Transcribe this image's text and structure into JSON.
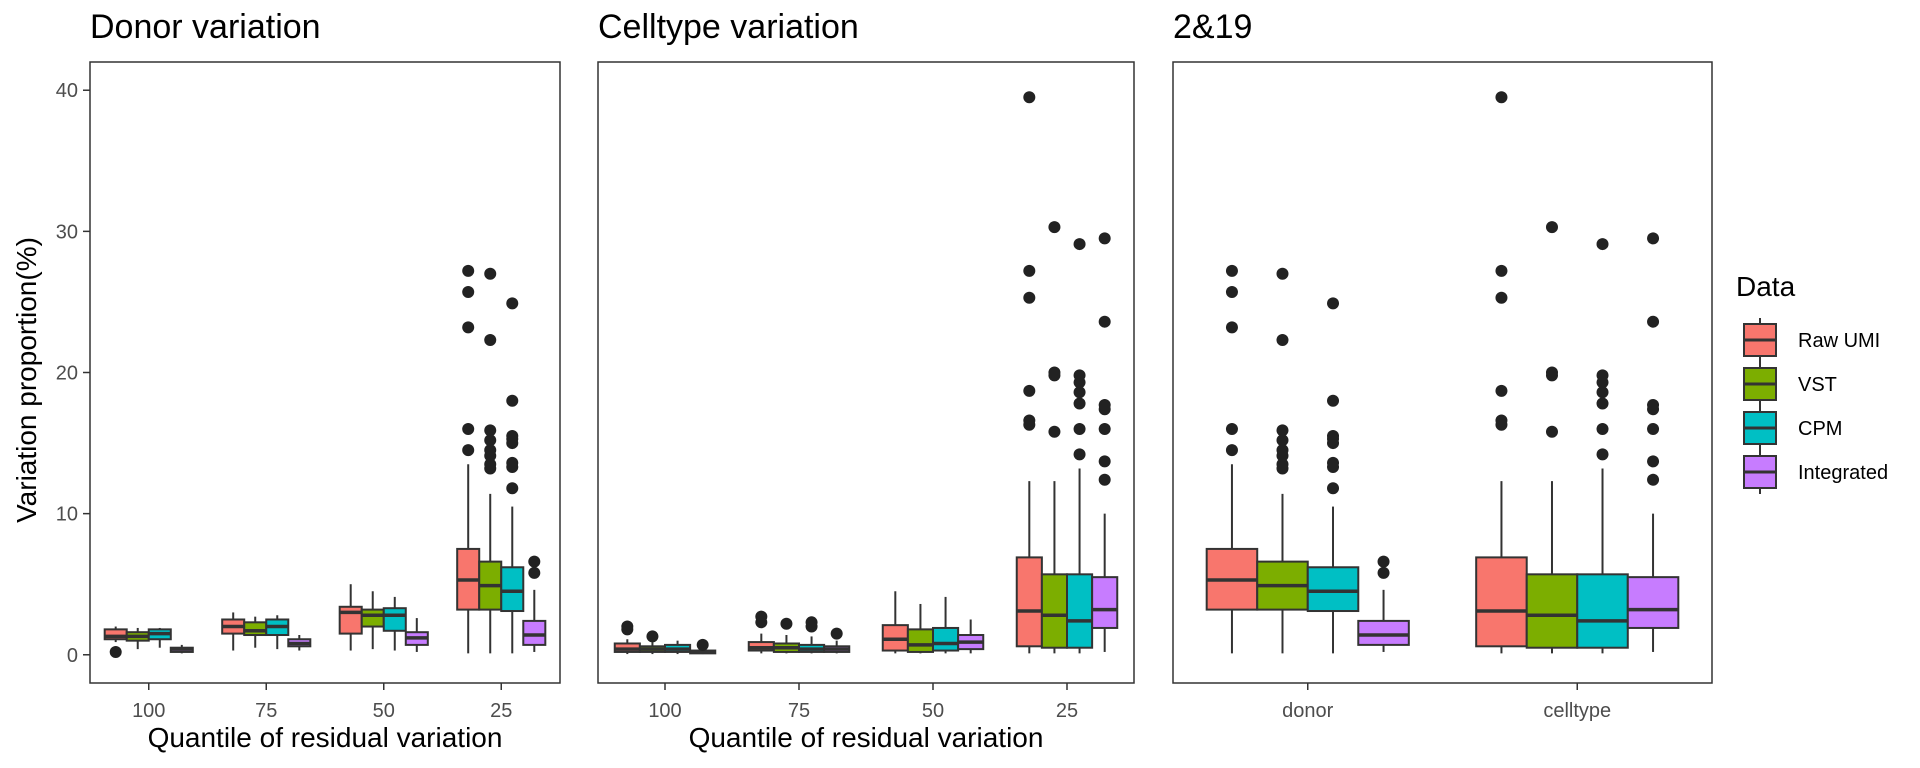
{
  "legend": {
    "title": "Data",
    "items": [
      {
        "label": "Raw UMI",
        "color": "#F8766D"
      },
      {
        "label": "VST",
        "color": "#7CAE00"
      },
      {
        "label": "CPM",
        "color": "#00BFC4"
      },
      {
        "label": "Integrated",
        "color": "#C77CFF"
      }
    ]
  },
  "y_axis_title": "Variation proportion(%)",
  "chart_data": [
    {
      "type": "box",
      "title": "Donor variation",
      "xlabel": "Quantile of residual variation",
      "ylabel": "Variation proportion(%)",
      "ylim": [
        -2,
        42
      ],
      "yticks": [
        0,
        10,
        20,
        30,
        40
      ],
      "categories": [
        "100",
        "75",
        "50",
        "25"
      ],
      "series": [
        {
          "name": "Raw UMI",
          "boxes": [
            {
              "min": 0.9,
              "q1": 1.1,
              "median": 1.3,
              "q3": 1.8,
              "max": 2.0,
              "outliers": [
                0.2
              ]
            },
            {
              "min": 0.3,
              "q1": 1.5,
              "median": 2.0,
              "q3": 2.5,
              "max": 3.0,
              "outliers": []
            },
            {
              "min": 0.3,
              "q1": 1.5,
              "median": 3.0,
              "q3": 3.4,
              "max": 5.0,
              "outliers": []
            },
            {
              "min": 0.1,
              "q1": 3.2,
              "median": 5.3,
              "q3": 7.5,
              "max": 13.5,
              "outliers": [
                14.5,
                16.0,
                23.2,
                25.7,
                27.2
              ]
            }
          ]
        },
        {
          "name": "VST",
          "boxes": [
            {
              "min": 0.4,
              "q1": 1.0,
              "median": 1.3,
              "q3": 1.6,
              "max": 1.9,
              "outliers": []
            },
            {
              "min": 0.5,
              "q1": 1.4,
              "median": 1.7,
              "q3": 2.3,
              "max": 2.7,
              "outliers": []
            },
            {
              "min": 0.4,
              "q1": 2.0,
              "median": 2.8,
              "q3": 3.2,
              "max": 4.5,
              "outliers": []
            },
            {
              "min": 0.1,
              "q1": 3.2,
              "median": 4.9,
              "q3": 6.6,
              "max": 11.4,
              "outliers": [
                13.2,
                13.5,
                14.1,
                14.5,
                15.2,
                15.9,
                22.3,
                27.0
              ]
            }
          ]
        },
        {
          "name": "CPM",
          "boxes": [
            {
              "min": 0.5,
              "q1": 1.1,
              "median": 1.5,
              "q3": 1.8,
              "max": 1.9,
              "outliers": []
            },
            {
              "min": 0.4,
              "q1": 1.4,
              "median": 2.0,
              "q3": 2.5,
              "max": 2.8,
              "outliers": []
            },
            {
              "min": 0.3,
              "q1": 1.7,
              "median": 2.8,
              "q3": 3.3,
              "max": 4.1,
              "outliers": []
            },
            {
              "min": 0.1,
              "q1": 3.1,
              "median": 4.5,
              "q3": 6.2,
              "max": 10.5,
              "outliers": [
                11.8,
                13.3,
                13.6,
                15.0,
                15.3,
                15.5,
                18.0,
                24.9
              ]
            }
          ]
        },
        {
          "name": "Integrated",
          "boxes": [
            {
              "min": 0.1,
              "q1": 0.2,
              "median": 0.4,
              "q3": 0.5,
              "max": 0.7,
              "outliers": []
            },
            {
              "min": 0.3,
              "q1": 0.6,
              "median": 0.8,
              "q3": 1.1,
              "max": 1.4,
              "outliers": []
            },
            {
              "min": 0.2,
              "q1": 0.7,
              "median": 1.2,
              "q3": 1.6,
              "max": 2.6,
              "outliers": []
            },
            {
              "min": 0.2,
              "q1": 0.7,
              "median": 1.4,
              "q3": 2.4,
              "max": 4.6,
              "outliers": [
                5.8,
                6.6
              ]
            }
          ]
        }
      ]
    },
    {
      "type": "box",
      "title": "Celltype variation",
      "xlabel": "Quantile of residual variation",
      "ylabel": "",
      "ylim": [
        -2,
        42
      ],
      "categories": [
        "100",
        "75",
        "50",
        "25"
      ],
      "series": [
        {
          "name": "Raw UMI",
          "boxes": [
            {
              "min": 0.05,
              "q1": 0.2,
              "median": 0.4,
              "q3": 0.8,
              "max": 1.1,
              "outliers": [
                1.8,
                2.0
              ]
            },
            {
              "min": 0.1,
              "q1": 0.3,
              "median": 0.5,
              "q3": 0.9,
              "max": 1.5,
              "outliers": [
                2.3,
                2.7
              ]
            },
            {
              "min": 0.1,
              "q1": 0.3,
              "median": 1.1,
              "q3": 2.1,
              "max": 4.5,
              "outliers": []
            },
            {
              "min": 0.1,
              "q1": 0.6,
              "median": 3.1,
              "q3": 6.9,
              "max": 12.3,
              "outliers": [
                16.3,
                16.6,
                18.7,
                25.3,
                27.2,
                39.5
              ]
            }
          ]
        },
        {
          "name": "VST",
          "boxes": [
            {
              "min": 0.05,
              "q1": 0.2,
              "median": 0.4,
              "q3": 0.6,
              "max": 0.9,
              "outliers": [
                1.3
              ]
            },
            {
              "min": 0.1,
              "q1": 0.2,
              "median": 0.5,
              "q3": 0.8,
              "max": 1.4,
              "outliers": [
                2.2
              ]
            },
            {
              "min": 0.1,
              "q1": 0.2,
              "median": 0.7,
              "q3": 1.8,
              "max": 3.6,
              "outliers": []
            },
            {
              "min": 0.1,
              "q1": 0.5,
              "median": 2.8,
              "q3": 5.7,
              "max": 12.3,
              "outliers": [
                15.8,
                19.8,
                20.0,
                30.3
              ]
            }
          ]
        },
        {
          "name": "CPM",
          "boxes": [
            {
              "min": 0.05,
              "q1": 0.2,
              "median": 0.4,
              "q3": 0.7,
              "max": 1.0,
              "outliers": []
            },
            {
              "min": 0.1,
              "q1": 0.2,
              "median": 0.4,
              "q3": 0.7,
              "max": 1.3,
              "outliers": [
                2.0,
                2.3
              ]
            },
            {
              "min": 0.1,
              "q1": 0.3,
              "median": 0.8,
              "q3": 1.9,
              "max": 4.1,
              "outliers": []
            },
            {
              "min": 0.1,
              "q1": 0.5,
              "median": 2.4,
              "q3": 5.7,
              "max": 13.2,
              "outliers": [
                14.2,
                16.0,
                17.8,
                18.6,
                19.3,
                19.8,
                29.1
              ]
            }
          ]
        },
        {
          "name": "Integrated",
          "boxes": [
            {
              "min": 0.05,
              "q1": 0.1,
              "median": 0.2,
              "q3": 0.3,
              "max": 0.5,
              "outliers": [
                0.7
              ]
            },
            {
              "min": 0.1,
              "q1": 0.2,
              "median": 0.4,
              "q3": 0.6,
              "max": 1.0,
              "outliers": [
                1.5
              ]
            },
            {
              "min": 0.1,
              "q1": 0.4,
              "median": 0.9,
              "q3": 1.4,
              "max": 2.5,
              "outliers": []
            },
            {
              "min": 0.2,
              "q1": 1.9,
              "median": 3.2,
              "q3": 5.5,
              "max": 10.0,
              "outliers": [
                12.4,
                13.7,
                16.0,
                17.4,
                17.7,
                23.6,
                29.5
              ]
            }
          ]
        }
      ]
    },
    {
      "type": "box",
      "title": "2&19",
      "xlabel": "",
      "ylabel": "",
      "ylim": [
        -2,
        42
      ],
      "categories": [
        "donor",
        "celltype"
      ],
      "series": [
        {
          "name": "Raw UMI",
          "boxes": [
            {
              "min": 0.1,
              "q1": 3.2,
              "median": 5.3,
              "q3": 7.5,
              "max": 13.5,
              "outliers": [
                14.5,
                16.0,
                23.2,
                25.7,
                27.2
              ]
            },
            {
              "min": 0.1,
              "q1": 0.6,
              "median": 3.1,
              "q3": 6.9,
              "max": 12.3,
              "outliers": [
                16.3,
                16.6,
                18.7,
                25.3,
                27.2,
                39.5
              ]
            }
          ]
        },
        {
          "name": "VST",
          "boxes": [
            {
              "min": 0.1,
              "q1": 3.2,
              "median": 4.9,
              "q3": 6.6,
              "max": 11.4,
              "outliers": [
                13.2,
                13.5,
                14.1,
                14.5,
                15.2,
                15.9,
                22.3,
                27.0
              ]
            },
            {
              "min": 0.1,
              "q1": 0.5,
              "median": 2.8,
              "q3": 5.7,
              "max": 12.3,
              "outliers": [
                15.8,
                19.8,
                20.0,
                30.3
              ]
            }
          ]
        },
        {
          "name": "CPM",
          "boxes": [
            {
              "min": 0.1,
              "q1": 3.1,
              "median": 4.5,
              "q3": 6.2,
              "max": 10.5,
              "outliers": [
                11.8,
                13.3,
                13.6,
                15.0,
                15.3,
                15.5,
                18.0,
                24.9
              ]
            },
            {
              "min": 0.1,
              "q1": 0.5,
              "median": 2.4,
              "q3": 5.7,
              "max": 13.2,
              "outliers": [
                14.2,
                16.0,
                17.8,
                18.6,
                19.3,
                19.8,
                29.1
              ]
            }
          ]
        },
        {
          "name": "Integrated",
          "boxes": [
            {
              "min": 0.2,
              "q1": 0.7,
              "median": 1.4,
              "q3": 2.4,
              "max": 4.6,
              "outliers": [
                5.8,
                6.6
              ]
            },
            {
              "min": 0.2,
              "q1": 1.9,
              "median": 3.2,
              "q3": 5.5,
              "max": 10.0,
              "outliers": [
                12.4,
                13.7,
                16.0,
                17.4,
                17.7,
                23.6,
                29.5
              ]
            }
          ]
        }
      ]
    }
  ]
}
